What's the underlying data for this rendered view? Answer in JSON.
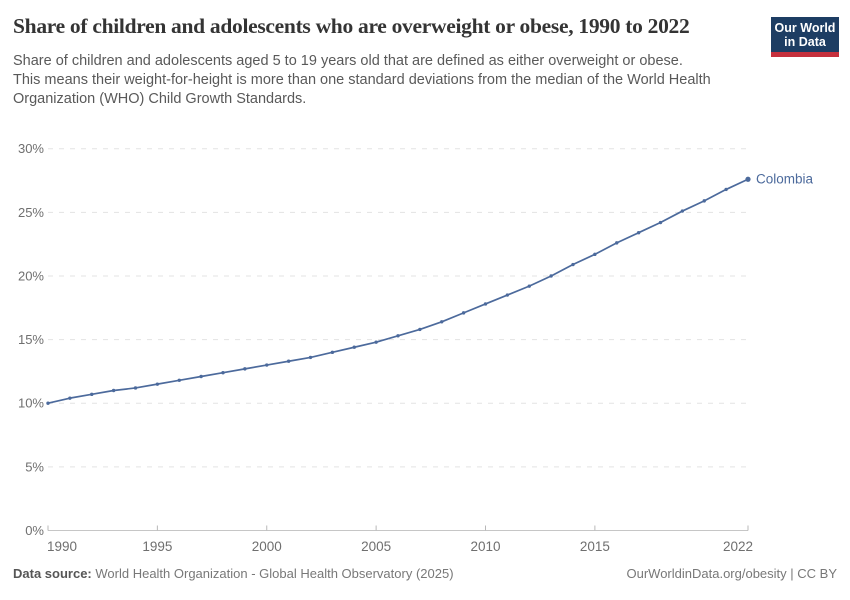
{
  "header": {
    "title": "Share of children and adolescents who are overweight or obese, 1990 to 2022",
    "subtitle_line1": "Share of children and adolescents aged 5 to 19 years old that are defined as either overweight or obese.",
    "subtitle_line2": "This means their weight-for-height is more than one standard deviations from the median of the World Health Organization (WHO) Child Growth Standards.",
    "logo": {
      "line1": "Our World",
      "line2": "in Data"
    }
  },
  "chart_data": {
    "type": "line",
    "title": "Share of children and adolescents who are overweight or obese, 1990 to 2022",
    "xlabel": "",
    "ylabel": "",
    "xlim": [
      1990,
      2022
    ],
    "ylim": [
      0,
      30
    ],
    "grid": "horizontal-dashed",
    "legend": "line-end-label",
    "x_ticks": [
      {
        "value": 1990,
        "label": "1990"
      },
      {
        "value": 1995,
        "label": "1995"
      },
      {
        "value": 2000,
        "label": "2000"
      },
      {
        "value": 2005,
        "label": "2005"
      },
      {
        "value": 2010,
        "label": "2010"
      },
      {
        "value": 2015,
        "label": "2015"
      },
      {
        "value": 2022,
        "label": "2022"
      }
    ],
    "y_ticks": [
      {
        "value": 0,
        "label": "0%"
      },
      {
        "value": 5,
        "label": "5%"
      },
      {
        "value": 10,
        "label": "10%"
      },
      {
        "value": 15,
        "label": "15%"
      },
      {
        "value": 20,
        "label": "20%"
      },
      {
        "value": 25,
        "label": "25%"
      },
      {
        "value": 30,
        "label": "30%"
      }
    ],
    "series": [
      {
        "name": "Colombia",
        "color": "#4c6a9c",
        "x": [
          1990,
          1991,
          1992,
          1993,
          1994,
          1995,
          1996,
          1997,
          1998,
          1999,
          2000,
          2001,
          2002,
          2003,
          2004,
          2005,
          2006,
          2007,
          2008,
          2009,
          2010,
          2011,
          2012,
          2013,
          2014,
          2015,
          2016,
          2017,
          2018,
          2019,
          2020,
          2021,
          2022
        ],
        "values": [
          10.0,
          10.4,
          10.7,
          11.0,
          11.2,
          11.5,
          11.8,
          12.1,
          12.4,
          12.7,
          13.0,
          13.3,
          13.6,
          14.0,
          14.4,
          14.8,
          15.3,
          15.8,
          16.4,
          17.1,
          17.8,
          18.5,
          19.2,
          20.0,
          20.9,
          21.7,
          22.6,
          23.4,
          24.2,
          25.1,
          25.9,
          26.8,
          27.6
        ]
      }
    ]
  },
  "footer": {
    "source_label": "Data source:",
    "source_text": "World Health Organization - Global Health Observatory (2025)",
    "credit": "OurWorldinData.org/obesity | CC BY"
  },
  "colors": {
    "line": "#4c6a9c",
    "logo_navy": "#1d3d63",
    "logo_red": "#c5303c",
    "gridline": "#e3e3e3",
    "axis": "#c6c6c6"
  }
}
